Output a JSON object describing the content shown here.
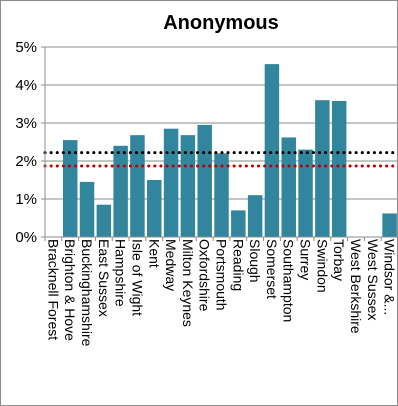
{
  "chart_data": {
    "type": "bar",
    "title": "Anonymous",
    "xlabel": "",
    "ylabel": "",
    "ylim": [
      0,
      5
    ],
    "y_ticks": [
      "0%",
      "1%",
      "2%",
      "3%",
      "4%",
      "5%"
    ],
    "y_tick_values": [
      0,
      1,
      2,
      3,
      4,
      5
    ],
    "grid": true,
    "categories": [
      "Bracknell Forest",
      "Brighton & Hove",
      "Buckinghamshire",
      "East Sussex",
      "Hampshire",
      "Isle of Wight",
      "Kent",
      "Medway",
      "Milton Keynes",
      "Oxfordshire",
      "Portsmouth",
      "Reading",
      "Slough",
      "Somerset",
      "Southampton",
      "Surrey",
      "Swindon",
      "Torbay",
      "West Berkshire",
      "West Sussex",
      "Windsor &..."
    ],
    "values": [
      0,
      2.55,
      1.45,
      0.85,
      2.4,
      2.68,
      1.5,
      2.85,
      2.68,
      2.95,
      2.2,
      0.7,
      1.1,
      4.55,
      2.62,
      2.3,
      3.6,
      3.58,
      0,
      0,
      0.62
    ],
    "bar_color": "#31859c",
    "reference_lines": [
      {
        "value": 2.22,
        "color": "#000000",
        "style": "dotted"
      },
      {
        "value": 1.87,
        "color": "#c00000",
        "style": "dotted"
      }
    ]
  }
}
